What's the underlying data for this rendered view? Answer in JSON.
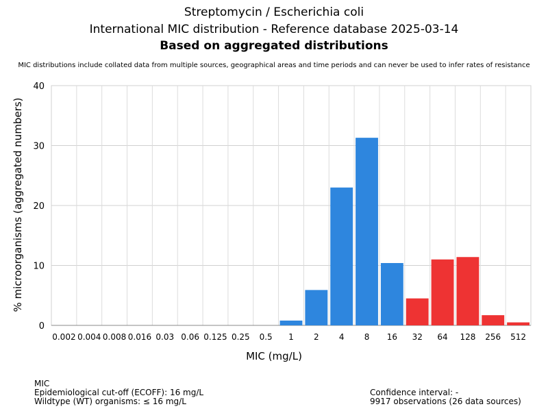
{
  "header": {
    "title_line1": "Streptomycin / Escherichia coli",
    "title_line2": "International MIC distribution - Reference database 2025-03-14",
    "title_line3": "Based on aggregated distributions",
    "subtitle": "MIC distributions include collated data from multiple sources, geographical areas and time periods and can never be used to infer rates of resistance"
  },
  "chart_data": {
    "type": "bar",
    "title": "Streptomycin / Escherichia coli",
    "xlabel": "MIC (mg/L)",
    "ylabel": "% microorganisms (aggregated numbers)",
    "ylim": [
      0,
      40
    ],
    "yticks": [
      0,
      10,
      20,
      30,
      40
    ],
    "grid": true,
    "categories": [
      "0.002",
      "0.004",
      "0.008",
      "0.016",
      "0.03",
      "0.06",
      "0.125",
      "0.25",
      "0.5",
      "1",
      "2",
      "4",
      "8",
      "16",
      "32",
      "64",
      "128",
      "256",
      "512"
    ],
    "values": [
      0,
      0,
      0,
      0,
      0,
      0,
      0,
      0,
      0,
      0.8,
      5.9,
      23.0,
      31.3,
      10.4,
      4.5,
      11.0,
      11.4,
      1.7,
      0.5
    ],
    "colors": {
      "wildtype": "#2e86de",
      "non_wildtype": "#ee3333"
    },
    "bar_group": [
      "wt",
      "wt",
      "wt",
      "wt",
      "wt",
      "wt",
      "wt",
      "wt",
      "wt",
      "wt",
      "wt",
      "wt",
      "wt",
      "wt",
      "nwt",
      "nwt",
      "nwt",
      "nwt",
      "nwt"
    ]
  },
  "footer": {
    "left": [
      "MIC",
      "Epidemiological cut-off (ECOFF): 16 mg/L",
      "Wildtype (WT) organisms: ≤ 16 mg/L"
    ],
    "right": [
      "Confidence interval: -",
      "9917 observations (26 data sources)"
    ]
  }
}
